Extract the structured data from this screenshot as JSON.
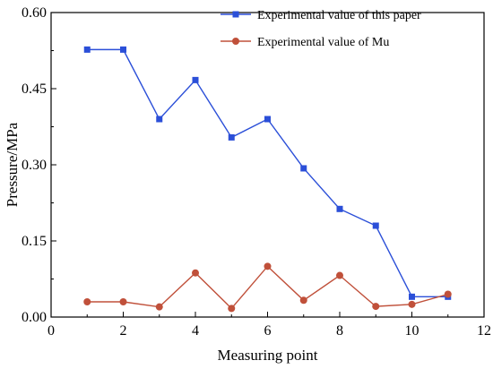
{
  "chart_data": {
    "type": "line",
    "title": "",
    "xlabel": "Measuring point",
    "ylabel": "Pressure/MPa",
    "xlim": [
      0,
      12
    ],
    "ylim": [
      0,
      0.6
    ],
    "xticks": [
      0,
      2,
      4,
      6,
      8,
      10,
      12
    ],
    "xtick_labels": [
      "0",
      "2",
      "4",
      "6",
      "8",
      "10",
      "12"
    ],
    "yticks": [
      0,
      0.15,
      0.3,
      0.45,
      0.6
    ],
    "ytick_labels": [
      "0.00",
      "0.15",
      "0.30",
      "0.45",
      "0.60"
    ],
    "grid": false,
    "legend_position": "top-right",
    "x": [
      1,
      2,
      3,
      4,
      5,
      6,
      7,
      8,
      9,
      10,
      11
    ],
    "series": [
      {
        "name": "Experimental value of this paper",
        "color": "#2b4fd8",
        "marker": "square",
        "values": [
          0.527,
          0.527,
          0.39,
          0.467,
          0.354,
          0.39,
          0.293,
          0.213,
          0.18,
          0.04,
          0.04
        ]
      },
      {
        "name": "Experimental value of Mu",
        "color": "#c0503a",
        "marker": "circle",
        "values": [
          0.03,
          0.03,
          0.02,
          0.087,
          0.017,
          0.1,
          0.033,
          0.082,
          0.021,
          0.025,
          0.045
        ]
      }
    ]
  }
}
